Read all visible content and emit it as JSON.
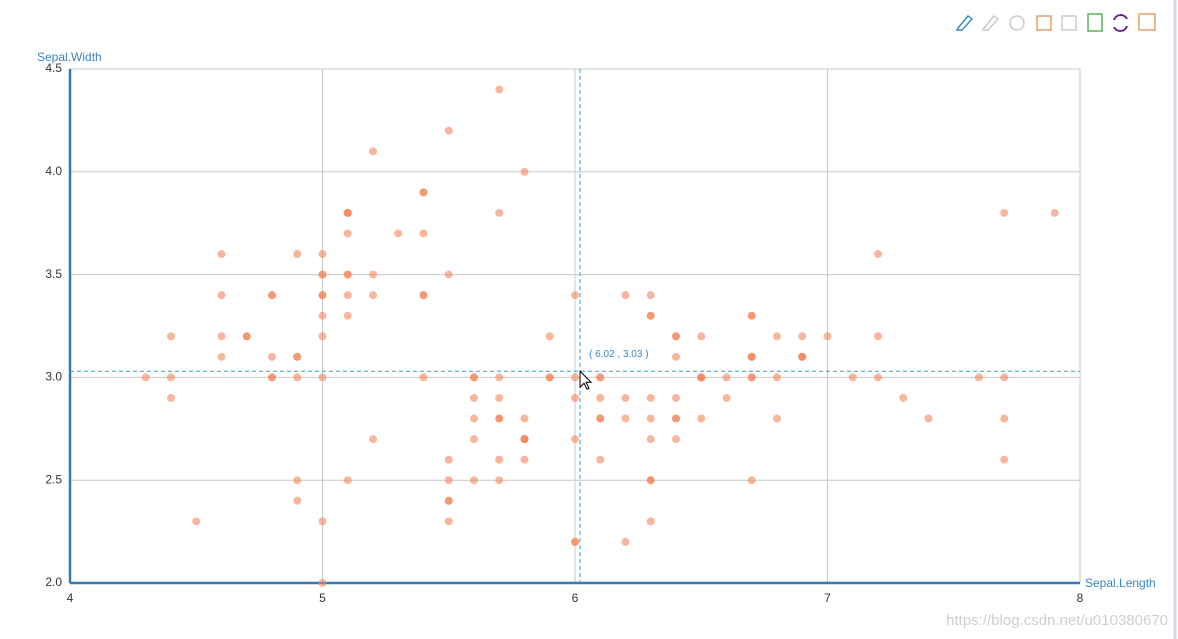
{
  "chart_data": {
    "type": "scatter",
    "x_label": "Sepal.Length",
    "y_label": "Sepal.Width",
    "color": "#f4865a",
    "x": [
      5.1,
      4.9,
      4.7,
      4.6,
      5.0,
      5.4,
      4.6,
      5.0,
      4.4,
      4.9,
      5.4,
      4.8,
      4.8,
      4.3,
      5.8,
      5.7,
      5.4,
      5.1,
      5.7,
      5.1,
      5.4,
      5.1,
      4.6,
      5.1,
      4.8,
      5.0,
      5.0,
      5.2,
      5.2,
      4.7,
      4.8,
      5.4,
      5.2,
      5.5,
      4.9,
      5.0,
      5.5,
      4.9,
      4.4,
      5.1,
      5.0,
      4.5,
      4.4,
      5.0,
      5.1,
      4.8,
      5.1,
      4.6,
      5.3,
      5.0,
      7.0,
      6.4,
      6.9,
      5.5,
      6.5,
      5.7,
      6.3,
      4.9,
      6.6,
      5.2,
      5.0,
      5.9,
      6.0,
      6.1,
      5.6,
      6.7,
      5.6,
      5.8,
      6.2,
      5.6,
      5.9,
      6.1,
      6.3,
      6.1,
      6.4,
      6.6,
      6.8,
      6.7,
      6.0,
      5.7,
      5.5,
      5.5,
      5.8,
      6.0,
      5.4,
      6.0,
      6.7,
      6.3,
      5.6,
      5.5,
      5.5,
      6.1,
      5.8,
      5.0,
      5.6,
      5.7,
      5.7,
      6.2,
      5.1,
      5.7,
      6.3,
      5.8,
      7.1,
      6.3,
      6.5,
      7.6,
      4.9,
      7.3,
      6.7,
      7.2,
      6.5,
      6.4,
      6.8,
      5.7,
      5.8,
      6.4,
      6.5,
      7.7,
      7.7,
      6.0,
      6.9,
      5.6,
      7.7,
      6.3,
      6.7,
      7.2,
      6.2,
      6.1,
      6.4,
      7.2,
      7.4,
      7.9,
      6.4,
      6.3,
      6.1,
      7.7,
      6.3,
      6.4,
      6.0,
      6.9,
      6.7,
      6.9,
      5.8,
      6.8,
      6.7,
      6.7,
      6.3,
      6.5,
      6.2,
      5.9
    ],
    "values": [
      3.5,
      3.0,
      3.2,
      3.1,
      3.6,
      3.9,
      3.4,
      3.4,
      2.9,
      3.1,
      3.7,
      3.4,
      3.0,
      3.0,
      4.0,
      4.4,
      3.9,
      3.5,
      3.8,
      3.8,
      3.4,
      3.7,
      3.6,
      3.3,
      3.4,
      3.0,
      3.4,
      3.5,
      3.4,
      3.2,
      3.1,
      3.4,
      4.1,
      4.2,
      3.1,
      3.2,
      3.5,
      3.6,
      3.0,
      3.4,
      3.5,
      2.3,
      3.2,
      3.5,
      3.8,
      3.0,
      3.8,
      3.2,
      3.7,
      3.3,
      3.2,
      3.2,
      3.1,
      2.3,
      2.8,
      2.8,
      3.3,
      2.4,
      2.9,
      2.7,
      2.0,
      3.0,
      2.2,
      2.9,
      2.9,
      3.1,
      3.0,
      2.7,
      2.2,
      2.5,
      3.2,
      2.8,
      2.5,
      2.8,
      2.9,
      3.0,
      2.8,
      3.0,
      2.9,
      2.6,
      2.4,
      2.4,
      2.7,
      2.7,
      3.0,
      3.4,
      3.1,
      2.3,
      3.0,
      2.5,
      2.6,
      3.0,
      2.6,
      2.3,
      2.7,
      3.0,
      2.9,
      2.9,
      2.5,
      2.8,
      3.3,
      2.7,
      3.0,
      2.9,
      3.0,
      3.0,
      2.5,
      2.9,
      2.5,
      3.6,
      3.2,
      2.7,
      3.0,
      2.5,
      2.8,
      3.2,
      3.0,
      3.8,
      2.6,
      2.2,
      3.2,
      2.8,
      2.8,
      2.7,
      3.3,
      3.2,
      2.8,
      3.0,
      2.8,
      3.0,
      2.8,
      3.8,
      2.8,
      2.8,
      2.6,
      3.0,
      3.4,
      3.1,
      3.0,
      3.1,
      3.1,
      3.1,
      2.7,
      3.2,
      3.3,
      3.0,
      2.5,
      3.0,
      3.4,
      3.0
    ],
    "xlim": [
      4,
      8
    ],
    "xticks": [
      4,
      5,
      6,
      7,
      8
    ],
    "ylim": [
      2.0,
      4.5
    ],
    "yticks": [
      {
        "value": 2,
        "label": "2.0"
      },
      2.5,
      {
        "value": 3,
        "label": "3.0"
      },
      3.5,
      {
        "value": 4,
        "label": "4.0"
      },
      4.5
    ],
    "grid": true,
    "crosshair": {
      "x": 6.02,
      "y": 3.03,
      "label": "( 6.02 , 3.03 )"
    }
  },
  "watermark": "https://blog.csdn.net/u010380670"
}
